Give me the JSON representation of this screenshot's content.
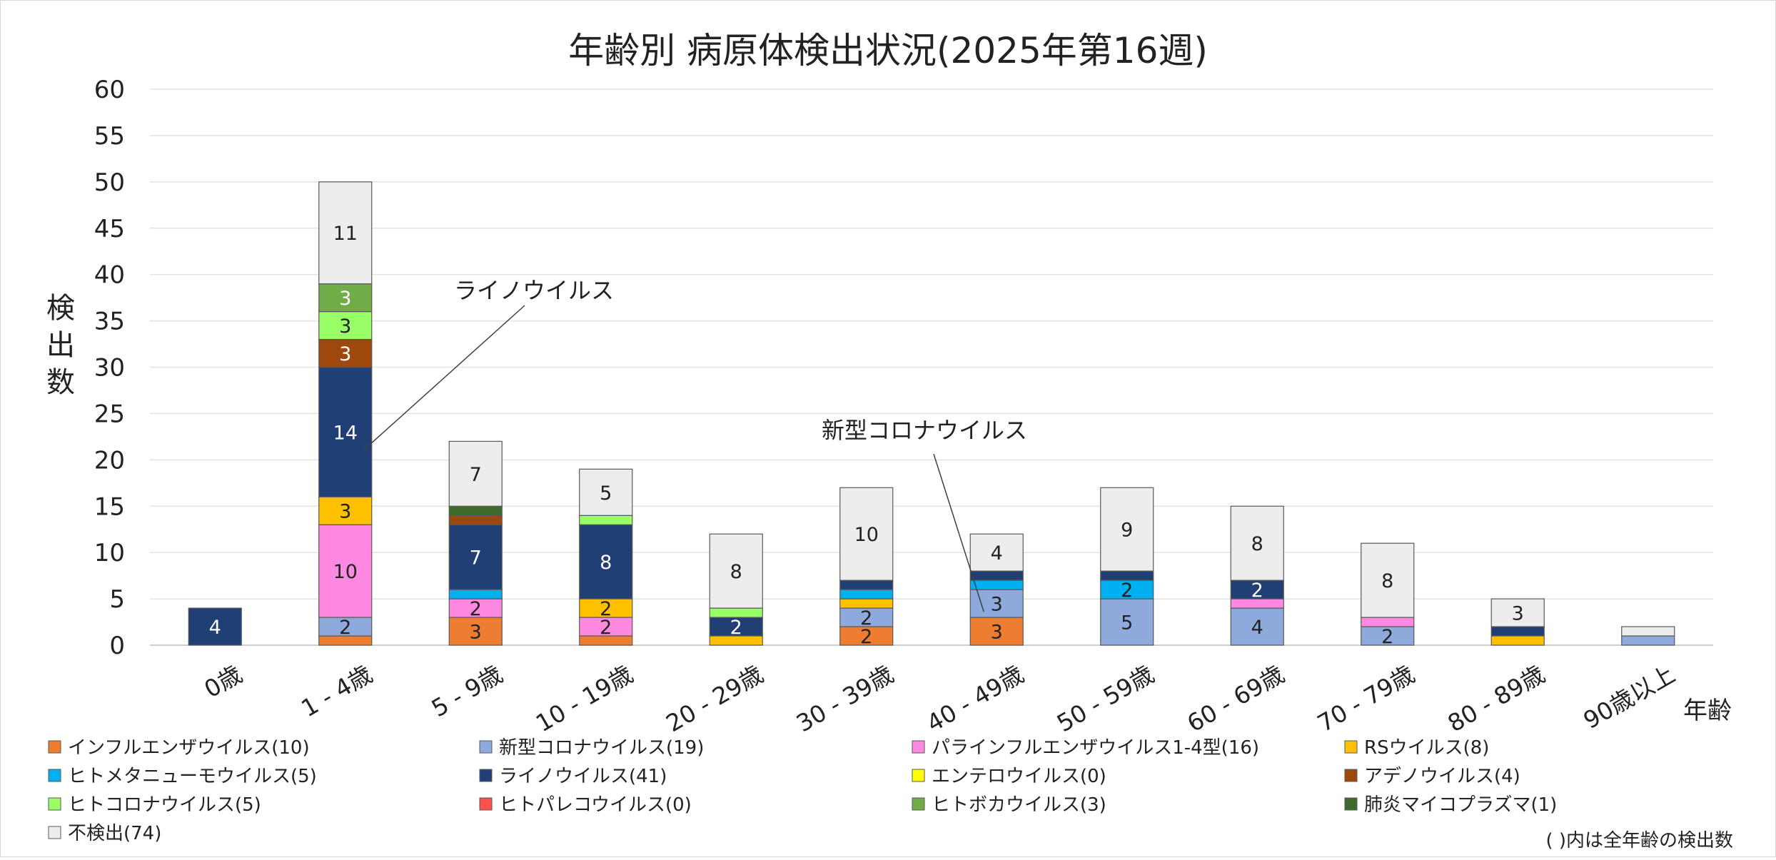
{
  "chart_data": {
    "type": "bar",
    "stacked": true,
    "title": "年齢別 病原体検出状況(2025年第16週)",
    "ylabel": "検出数",
    "xlabel": "年齢",
    "ylim": [
      0,
      60
    ],
    "yticks": [
      0,
      5,
      10,
      15,
      20,
      25,
      30,
      35,
      40,
      45,
      50,
      55,
      60
    ],
    "grid": true,
    "legend_position": "bottom",
    "categories": [
      "0歳",
      "1 - 4歳",
      "5 - 9歳",
      "10 - 19歳",
      "20 - 29歳",
      "30 - 39歳",
      "40 - 49歳",
      "50 - 59歳",
      "60 - 69歳",
      "70 - 79歳",
      "80 - 89歳",
      "90歳以上"
    ],
    "series": [
      {
        "name": "インフルエンザウイルス(10)",
        "color": "#ED7D31",
        "values": [
          0,
          1,
          3,
          1,
          0,
          2,
          3,
          0,
          0,
          0,
          0,
          0
        ]
      },
      {
        "name": "新型コロナウイルス(19)",
        "color": "#8EA9DB",
        "values": [
          0,
          2,
          0,
          0,
          0,
          2,
          3,
          5,
          4,
          2,
          0,
          1
        ]
      },
      {
        "name": "パラインフルエンザウイルス1-4型(16)",
        "color": "#FF88E0",
        "values": [
          0,
          10,
          2,
          2,
          0,
          0,
          0,
          0,
          1,
          1,
          0,
          0
        ]
      },
      {
        "name": "RSウイルス(8)",
        "color": "#FFC000",
        "values": [
          0,
          3,
          0,
          2,
          1,
          1,
          0,
          0,
          0,
          0,
          1,
          0
        ]
      },
      {
        "name": "ヒトメタニューモウイルス(5)",
        "color": "#00B0F0",
        "values": [
          0,
          0,
          1,
          0,
          0,
          1,
          1,
          2,
          0,
          0,
          0,
          0
        ]
      },
      {
        "name": "ライノウイルス(41)",
        "color": "#203F75",
        "values": [
          4,
          14,
          7,
          8,
          2,
          1,
          1,
          1,
          2,
          0,
          1,
          0
        ]
      },
      {
        "name": "エンテロウイルス(0)",
        "color": "#FFFF00",
        "values": [
          0,
          0,
          0,
          0,
          0,
          0,
          0,
          0,
          0,
          0,
          0,
          0
        ]
      },
      {
        "name": "アデノウイルス(4)",
        "color": "#9E480E",
        "values": [
          0,
          3,
          1,
          0,
          0,
          0,
          0,
          0,
          0,
          0,
          0,
          0
        ]
      },
      {
        "name": "ヒトコロナウイルス(5)",
        "color": "#99FF66",
        "values": [
          0,
          3,
          0,
          1,
          1,
          0,
          0,
          0,
          0,
          0,
          0,
          0
        ]
      },
      {
        "name": "ヒトパレコウイルス(0)",
        "color": "#FF5050",
        "values": [
          0,
          0,
          0,
          0,
          0,
          0,
          0,
          0,
          0,
          0,
          0,
          0
        ]
      },
      {
        "name": "ヒトボカウイルス(3)",
        "color": "#70AD47",
        "values": [
          0,
          3,
          0,
          0,
          0,
          0,
          0,
          0,
          0,
          0,
          0,
          0
        ]
      },
      {
        "name": "肺炎マイコプラズマ(1)",
        "color": "#3E6B2A",
        "values": [
          0,
          0,
          1,
          0,
          0,
          0,
          0,
          0,
          0,
          0,
          0,
          0
        ]
      },
      {
        "name": "不検出(74)",
        "color": "#EDEDED",
        "values": [
          0,
          11,
          7,
          5,
          8,
          10,
          4,
          9,
          8,
          8,
          3,
          1
        ]
      }
    ],
    "annotations": [
      {
        "text": "ライノウイルス"
      },
      {
        "text": "新型コロナウイルス"
      }
    ],
    "footnote": "( )内は全年齢の検出数"
  }
}
